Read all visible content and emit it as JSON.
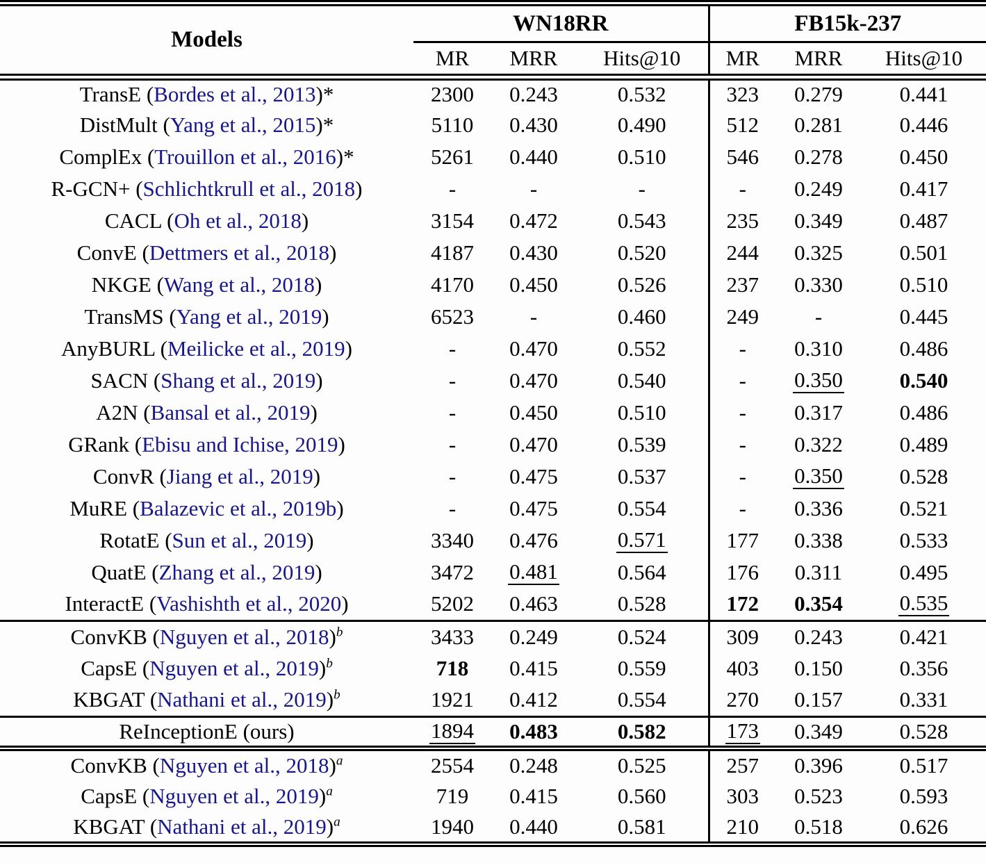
{
  "page": {
    "background": "#fdfdfd"
  },
  "table": {
    "colors": {
      "citation_link": "#17178a",
      "text": "#000000",
      "rule": "#000000"
    },
    "header": {
      "models_label": "Models",
      "groups": [
        {
          "label": "WN18RR"
        },
        {
          "label": "FB15k-237"
        }
      ],
      "metrics": [
        "MR",
        "MRR",
        "Hits@10"
      ]
    },
    "sections": [
      {
        "separator": "none",
        "rows": [
          {
            "model": "TransE",
            "citation": "Bordes et al., 2013",
            "star": "*",
            "sup": "",
            "cells": [
              "2300",
              "0.243",
              "0.532",
              "323",
              "0.279",
              "0.441"
            ]
          },
          {
            "model": "DistMult",
            "citation": "Yang et al., 2015",
            "star": "*",
            "sup": "",
            "cells": [
              "5110",
              "0.430",
              "0.490",
              "512",
              "0.281",
              "0.446"
            ]
          },
          {
            "model": "ComplEx",
            "citation": "Trouillon et al., 2016",
            "star": "*",
            "sup": "",
            "cells": [
              "5261",
              "0.440",
              "0.510",
              "546",
              "0.278",
              "0.450"
            ]
          },
          {
            "model": "R-GCN+",
            "citation": "Schlichtkrull et al., 2018",
            "star": "",
            "sup": "",
            "cells": [
              "-",
              "-",
              "-",
              "-",
              "0.249",
              "0.417"
            ]
          },
          {
            "model": "CACL",
            "citation": "Oh et al., 2018",
            "star": "",
            "sup": "",
            "cells": [
              "3154",
              "0.472",
              "0.543",
              "235",
              "0.349",
              "0.487"
            ]
          },
          {
            "model": "ConvE",
            "citation": "Dettmers et al., 2018",
            "star": "",
            "sup": "",
            "cells": [
              "4187",
              "0.430",
              "0.520",
              "244",
              "0.325",
              "0.501"
            ]
          },
          {
            "model": "NKGE",
            "citation": "Wang et al., 2018",
            "star": "",
            "sup": "",
            "cells": [
              "4170",
              "0.450",
              "0.526",
              "237",
              "0.330",
              "0.510"
            ]
          },
          {
            "model": "TransMS",
            "citation": "Yang et al., 2019",
            "star": "",
            "sup": "",
            "cells": [
              "6523",
              "-",
              "0.460",
              "249",
              "-",
              "0.445"
            ]
          },
          {
            "model": "AnyBURL",
            "citation": "Meilicke et al., 2019",
            "star": "",
            "sup": "",
            "cells": [
              "-",
              "0.470",
              "0.552",
              "-",
              "0.310",
              "0.486"
            ]
          },
          {
            "model": "SACN",
            "citation": "Shang et al., 2019",
            "star": "",
            "sup": "",
            "cells": [
              "-",
              "0.470",
              "0.540",
              "-",
              {
                "v": "0.350",
                "style": "underline"
              },
              {
                "v": "0.540",
                "style": "bold"
              }
            ]
          },
          {
            "model": "A2N",
            "citation": "Bansal et al., 2019",
            "star": "",
            "sup": "",
            "cells": [
              "-",
              "0.450",
              "0.510",
              "-",
              "0.317",
              "0.486"
            ]
          },
          {
            "model": "GRank",
            "citation": "Ebisu and Ichise, 2019",
            "star": "",
            "sup": "",
            "cells": [
              "-",
              "0.470",
              "0.539",
              "-",
              "0.322",
              "0.489"
            ]
          },
          {
            "model": "ConvR",
            "citation": "Jiang et al., 2019",
            "star": "",
            "sup": "",
            "cells": [
              "-",
              "0.475",
              "0.537",
              "-",
              {
                "v": "0.350",
                "style": "underline"
              },
              "0.528"
            ]
          },
          {
            "model": "MuRE",
            "citation": "Balazevic et al., 2019b",
            "star": "",
            "sup": "",
            "cells": [
              "-",
              "0.475",
              "0.554",
              "-",
              "0.336",
              "0.521"
            ]
          },
          {
            "model": "RotatE",
            "citation": "Sun et al., 2019",
            "star": "",
            "sup": "",
            "cells": [
              "3340",
              "0.476",
              {
                "v": "0.571",
                "style": "underline"
              },
              "177",
              "0.338",
              "0.533"
            ]
          },
          {
            "model": "QuatE",
            "citation": "Zhang et al., 2019",
            "star": "",
            "sup": "",
            "cells": [
              "3472",
              {
                "v": "0.481",
                "style": "underline"
              },
              "0.564",
              "176",
              "0.311",
              "0.495"
            ]
          },
          {
            "model": "InteractE",
            "citation": "Vashishth et al., 2020",
            "star": "",
            "sup": "",
            "cells": [
              "5202",
              "0.463",
              "0.528",
              {
                "v": "172",
                "style": "bold"
              },
              {
                "v": "0.354",
                "style": "bold"
              },
              {
                "v": "0.535",
                "style": "underline"
              }
            ]
          }
        ]
      },
      {
        "separator": "single",
        "rows": [
          {
            "model": "ConvKB",
            "citation": "Nguyen et al., 2018",
            "star": "",
            "sup": "b",
            "cells": [
              "3433",
              "0.249",
              "0.524",
              "309",
              "0.243",
              "0.421"
            ]
          },
          {
            "model": "CapsE",
            "citation": "Nguyen et al., 2019",
            "star": "",
            "sup": "b",
            "cells": [
              {
                "v": "718",
                "style": "bold"
              },
              "0.415",
              "0.559",
              "403",
              "0.150",
              "0.356"
            ]
          },
          {
            "model": "KBGAT",
            "citation": "Nathani et al., 2019",
            "star": "",
            "sup": "b",
            "cells": [
              "1921",
              "0.412",
              "0.554",
              "270",
              "0.157",
              "0.331"
            ]
          }
        ]
      },
      {
        "separator": "single",
        "rows": [
          {
            "model": "ReInceptionE (ours)",
            "citation": "",
            "star": "",
            "sup": "",
            "cells": [
              {
                "v": "1894",
                "style": "underline"
              },
              {
                "v": "0.483",
                "style": "bold"
              },
              {
                "v": "0.582",
                "style": "bold"
              },
              {
                "v": "173",
                "style": "underline"
              },
              "0.349",
              "0.528"
            ]
          }
        ]
      },
      {
        "separator": "double",
        "rows": [
          {
            "model": "ConvKB",
            "citation": "Nguyen et al., 2018",
            "star": "",
            "sup": "a",
            "cells": [
              "2554",
              "0.248",
              "0.525",
              "257",
              "0.396",
              "0.517"
            ]
          },
          {
            "model": "CapsE",
            "citation": "Nguyen et al., 2019",
            "star": "",
            "sup": "a",
            "cells": [
              "719",
              "0.415",
              "0.560",
              "303",
              "0.523",
              "0.593"
            ]
          },
          {
            "model": "KBGAT",
            "citation": "Nathani et al., 2019",
            "star": "",
            "sup": "a",
            "cells": [
              "1940",
              "0.440",
              "0.581",
              "210",
              "0.518",
              "0.626"
            ]
          }
        ]
      }
    ]
  }
}
